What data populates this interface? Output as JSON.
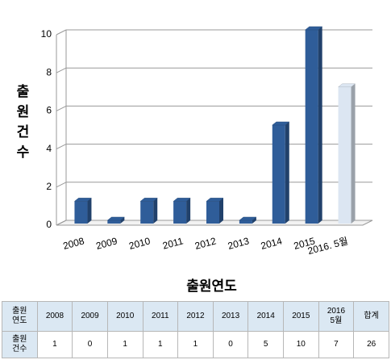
{
  "chart_data": {
    "type": "bar3d",
    "ylabel": "출원건수",
    "xlabel": "출원연도",
    "categories": [
      "2008",
      "2009",
      "2010",
      "2011",
      "2012",
      "2013",
      "2014",
      "2015",
      "2016. 5월"
    ],
    "values": [
      1,
      0,
      1,
      1,
      1,
      0,
      5,
      10,
      7
    ],
    "colors": [
      "#2f5d99",
      "#2f5d99",
      "#2f5d99",
      "#2f5d99",
      "#2f5d99",
      "#2f5d99",
      "#2f5d99",
      "#2f5d99",
      "#dce6f2"
    ],
    "ylim": [
      0,
      10
    ],
    "yticks": [
      0,
      2,
      4,
      6,
      8,
      10
    ],
    "grid": true
  },
  "table": {
    "header": [
      "출원\n연도",
      "2008",
      "2009",
      "2010",
      "2011",
      "2012",
      "2013",
      "2014",
      "2015",
      "2016\n5월",
      "합계"
    ],
    "rows": [
      [
        "출원\n건수",
        "1",
        "0",
        "1",
        "1",
        "1",
        "0",
        "5",
        "10",
        "7",
        "26"
      ]
    ]
  }
}
